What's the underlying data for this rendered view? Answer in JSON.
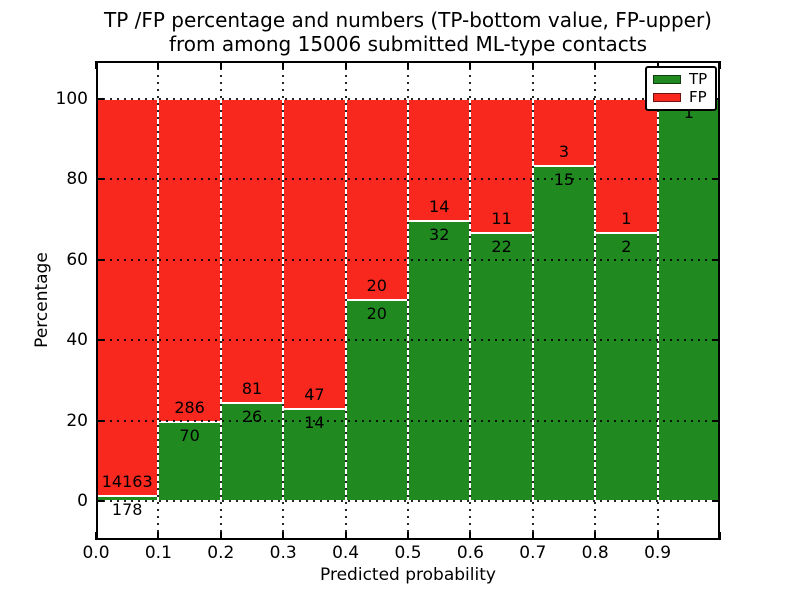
{
  "title": {
    "line1": "TP /FP percentage and numbers (TP-bottom value, FP-upper)",
    "line2": "from among 15006 submitted ML-type contacts"
  },
  "axes": {
    "xlabel": "Predicted probability",
    "ylabel": "Percentage",
    "x_tick_labels": [
      "0.0",
      "0.1",
      "0.2",
      "0.3",
      "0.4",
      "0.5",
      "0.6",
      "0.7",
      "0.8",
      "0.9"
    ],
    "y_tick_values": [
      0,
      20,
      40,
      60,
      80,
      100
    ],
    "y_tick_labels": [
      "0",
      "20",
      "40",
      "60",
      "80",
      "100"
    ]
  },
  "legend": [
    {
      "label": "TP",
      "color": "#208a20"
    },
    {
      "label": "FP",
      "color": "#f8281e"
    }
  ],
  "colors": {
    "tp": "#208a20",
    "fp": "#f8281e",
    "grid": "#000000",
    "frame": "#000000"
  },
  "chart_data": {
    "type": "bar",
    "stacked": true,
    "normalized": "each bin stacked to 100%",
    "title": "TP /FP percentage and numbers (TP-bottom value, FP-upper) from among 15006 submitted ML-type contacts",
    "xlabel": "Predicted probability",
    "ylabel": "Percentage",
    "xlim": [
      0.0,
      1.0
    ],
    "ylim": [
      -10,
      110
    ],
    "grid": true,
    "legend_position": "upper right",
    "total_contacts": 15006,
    "categories": [
      "0.0-0.1",
      "0.1-0.2",
      "0.2-0.3",
      "0.3-0.4",
      "0.4-0.5",
      "0.5-0.6",
      "0.6-0.7",
      "0.7-0.8",
      "0.8-0.9",
      "0.9-1.0"
    ],
    "series": [
      {
        "name": "TP",
        "counts": [
          178,
          70,
          26,
          14,
          20,
          32,
          22,
          15,
          2,
          1
        ]
      },
      {
        "name": "FP",
        "counts": [
          14163,
          286,
          81,
          47,
          20,
          14,
          11,
          3,
          1,
          0
        ]
      }
    ],
    "bins": [
      {
        "x_start": 0.0,
        "x_end": 0.1,
        "tp": 178,
        "fp": 14163
      },
      {
        "x_start": 0.1,
        "x_end": 0.2,
        "tp": 70,
        "fp": 286
      },
      {
        "x_start": 0.2,
        "x_end": 0.3,
        "tp": 26,
        "fp": 81
      },
      {
        "x_start": 0.3,
        "x_end": 0.4,
        "tp": 14,
        "fp": 47
      },
      {
        "x_start": 0.4,
        "x_end": 0.5,
        "tp": 20,
        "fp": 20
      },
      {
        "x_start": 0.5,
        "x_end": 0.6,
        "tp": 32,
        "fp": 14
      },
      {
        "x_start": 0.6,
        "x_end": 0.7,
        "tp": 22,
        "fp": 11
      },
      {
        "x_start": 0.7,
        "x_end": 0.8,
        "tp": 15,
        "fp": 3
      },
      {
        "x_start": 0.8,
        "x_end": 0.9,
        "tp": 2,
        "fp": 1
      },
      {
        "x_start": 0.9,
        "x_end": 1.0,
        "tp": 1,
        "fp": 0
      }
    ]
  }
}
